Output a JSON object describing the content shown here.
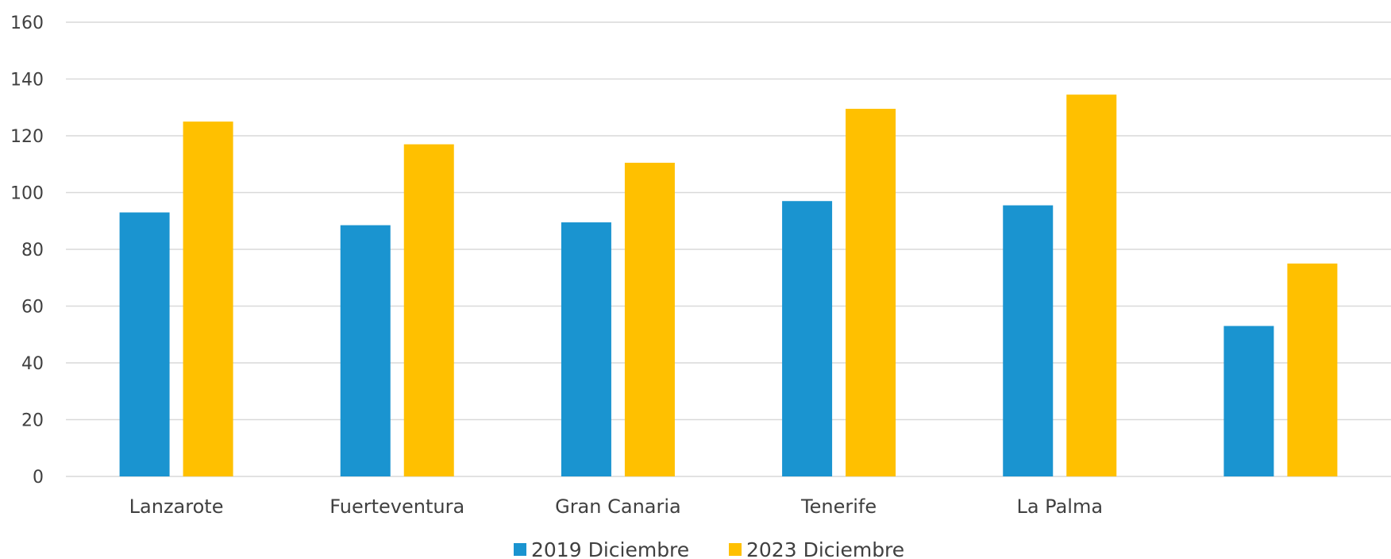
{
  "chart_data": {
    "type": "bar",
    "categories": [
      "Lanzarote",
      "Fuerteventura",
      "Gran Canaria",
      "Tenerife",
      "La Palma",
      ""
    ],
    "series": [
      {
        "name": "2019 Diciembre",
        "color": "#1A94D0",
        "values": [
          93,
          88.5,
          89.5,
          97,
          95.5,
          53
        ]
      },
      {
        "name": "2023 Diciembre",
        "color": "#FFC000",
        "values": [
          125,
          117,
          110.5,
          129.5,
          134.5,
          75
        ]
      }
    ],
    "yticks": [
      "0",
      "20",
      "40",
      "60",
      "80",
      "100",
      "120",
      "140",
      "160"
    ],
    "ylim": [
      0,
      160
    ],
    "grid": true,
    "legend_position": "bottom"
  }
}
